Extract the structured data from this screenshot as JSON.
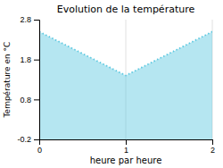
{
  "chart_data": {
    "type": "area",
    "title": "Evolution de la température",
    "x_label": "heure par heure",
    "y_label": "Température en °C",
    "x": [
      0,
      1,
      2
    ],
    "series": [
      {
        "values": [
          2.5,
          1.4,
          2.5
        ],
        "color": "#5cc8e0",
        "line_style": "dotted"
      }
    ],
    "xlim": [
      0,
      2
    ],
    "xticks": [
      0,
      1,
      2
    ],
    "ylim": [
      -0.2,
      2.8
    ],
    "yticks": [
      -0.2,
      0.8,
      1.8,
      2.8
    ],
    "grid": "x"
  }
}
